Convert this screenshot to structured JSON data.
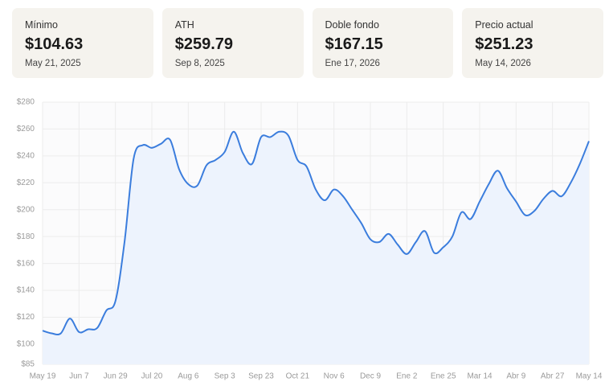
{
  "cards": [
    {
      "label": "Mínimo",
      "value": "$104.63",
      "date": "May 21, 2025"
    },
    {
      "label": "ATH",
      "value": "$259.79",
      "date": "Sep 8, 2025"
    },
    {
      "label": "Doble fondo",
      "value": "$167.15",
      "date": "Ene 17, 2026"
    },
    {
      "label": "Precio actual",
      "value": "$251.23",
      "date": "May 14, 2026"
    }
  ],
  "chart_data": {
    "type": "area",
    "color": "#3b7ddd",
    "fill": "#edf3fd",
    "grid": true,
    "categories": [
      "May 19",
      null,
      null,
      null,
      "Jun 7",
      null,
      null,
      null,
      "Jun 29",
      null,
      null,
      null,
      "Jul 20",
      null,
      null,
      null,
      "Aug 6",
      null,
      null,
      null,
      "Sep 3",
      null,
      null,
      null,
      "Sep 23",
      null,
      null,
      null,
      "Oct 21",
      null,
      null,
      null,
      "Nov 6",
      null,
      null,
      null,
      "Dec 9",
      null,
      null,
      null,
      "Ene 2",
      null,
      null,
      null,
      "Ene 25",
      null,
      null,
      null,
      "Mar 14",
      null,
      null,
      null,
      "Abr 9",
      null,
      null,
      null,
      "Abr 27",
      null,
      null,
      null,
      "May 14"
    ],
    "values": [
      110,
      108,
      108,
      119,
      109,
      111,
      112,
      125,
      132,
      176,
      238,
      248,
      246,
      249,
      252,
      230,
      219,
      218,
      233,
      237,
      243,
      258,
      242,
      234,
      254,
      254,
      258,
      255,
      237,
      232,
      215,
      207,
      215,
      210,
      200,
      190,
      178,
      176,
      182,
      174,
      167,
      176,
      184,
      168,
      172,
      180,
      198,
      193,
      206,
      219,
      229,
      216,
      206,
      196,
      199,
      208,
      214,
      210,
      220,
      234,
      251
    ],
    "ylim": [
      85,
      280
    ],
    "yticks": [
      {
        "value": 85,
        "label": "$85"
      },
      {
        "value": 100,
        "label": "$100"
      },
      {
        "value": 120,
        "label": "$120"
      },
      {
        "value": 140,
        "label": "$140"
      },
      {
        "value": 160,
        "label": "$160"
      },
      {
        "value": 180,
        "label": "$180"
      },
      {
        "value": 200,
        "label": "$200"
      },
      {
        "value": 220,
        "label": "$220"
      },
      {
        "value": 240,
        "label": "$240"
      },
      {
        "value": 260,
        "label": "$260"
      },
      {
        "value": 280,
        "label": "$280"
      }
    ]
  }
}
